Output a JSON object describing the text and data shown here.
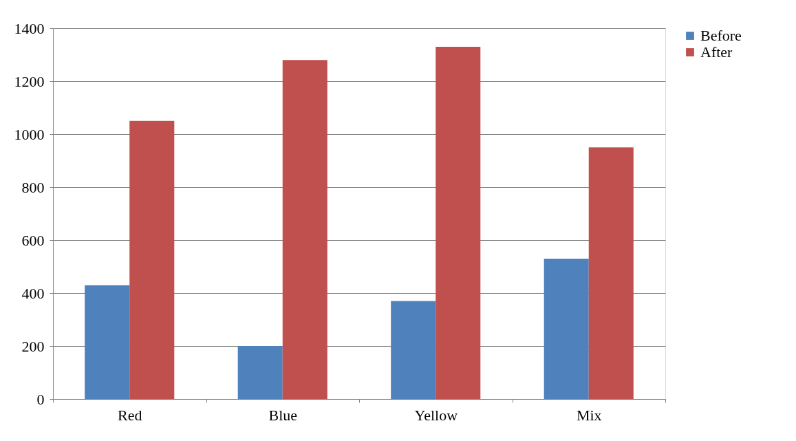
{
  "chart_data": {
    "type": "bar",
    "categories": [
      "Red",
      "Blue",
      "Yellow",
      "Mix"
    ],
    "series": [
      {
        "name": "Before",
        "color": "#4f81bd",
        "values": [
          430,
          200,
          370,
          530
        ]
      },
      {
        "name": "After",
        "color": "#c0504d",
        "values": [
          1050,
          1280,
          1330,
          950
        ]
      }
    ],
    "ylim": [
      0,
      1400
    ],
    "yticks": [
      0,
      200,
      400,
      600,
      800,
      1000,
      1200,
      1400
    ],
    "grid": "y",
    "legend": "right"
  }
}
